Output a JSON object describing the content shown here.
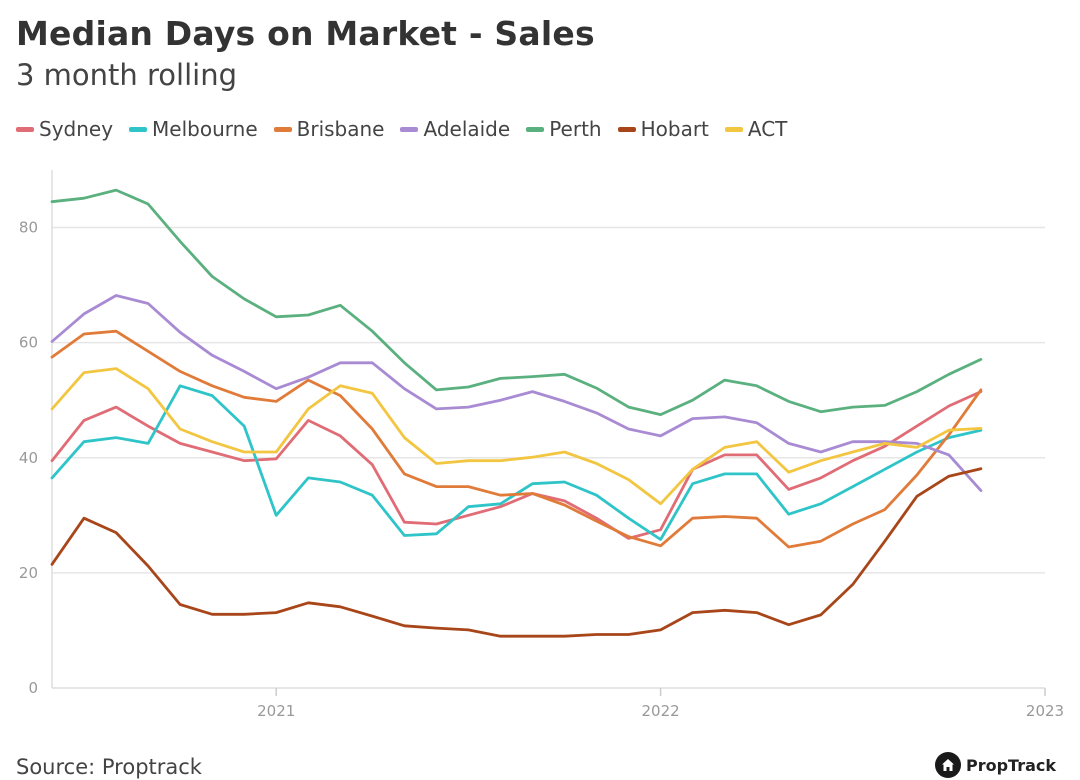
{
  "header": {
    "title": "Median Days on Market - Sales",
    "subtitle": "3 month rolling"
  },
  "footer": {
    "source": "Source: Proptrack",
    "brand": "PropTrack",
    "brand_icon": "house-icon"
  },
  "chart_data": {
    "type": "line",
    "title": "Median Days on Market - Sales",
    "subtitle": "3 month rolling",
    "xlabel": "",
    "ylabel": "",
    "x_unit": "month index (0 = Jun 2020)",
    "xlim": [
      0,
      31
    ],
    "ylim": [
      0,
      90
    ],
    "y_ticks": [
      0,
      20,
      40,
      60,
      80
    ],
    "x_ticks": [
      {
        "x": 7,
        "label": "2021"
      },
      {
        "x": 19,
        "label": "2022"
      },
      {
        "x": 31,
        "label": "2023"
      }
    ],
    "grid": true,
    "legend_position": "top",
    "x": [
      0,
      1,
      2,
      3,
      4,
      5,
      6,
      7,
      8,
      9,
      10,
      11,
      12,
      13,
      14,
      15,
      16,
      17,
      18,
      19,
      20,
      21,
      22,
      23,
      24,
      25,
      26,
      27,
      28,
      29,
      30
    ],
    "series": [
      {
        "name": "Sydney",
        "color": "#e06c75",
        "values": [
          39.5,
          46.5,
          48.8,
          45.5,
          42.5,
          41,
          39.5,
          39.8,
          46.5,
          43.8,
          38.8,
          28.8,
          28.5,
          30,
          31.5,
          33.8,
          32.5,
          29.5,
          26,
          27.5,
          38,
          40.5,
          40.5,
          34.5,
          36.5,
          39.5,
          42,
          45.5,
          49,
          51.5,
          null
        ]
      },
      {
        "name": "Melbourne",
        "color": "#2ec4c8",
        "values": [
          36.5,
          42.8,
          43.5,
          42.5,
          52.5,
          50.8,
          45.5,
          30,
          36.5,
          35.8,
          33.5,
          26.5,
          26.8,
          31.5,
          32,
          35.5,
          35.8,
          33.5,
          29.5,
          25.8,
          35.5,
          37.2,
          37.2,
          30.2,
          32,
          35,
          38,
          41,
          43.5,
          44.8,
          null
        ]
      },
      {
        "name": "Brisbane",
        "color": "#e07b39",
        "values": [
          57.5,
          61.5,
          62,
          58.5,
          55,
          52.5,
          50.5,
          49.8,
          53.5,
          50.8,
          45,
          37.2,
          35,
          35,
          33.5,
          33.8,
          31.8,
          29,
          26.3,
          24.7,
          29.5,
          29.8,
          29.5,
          24.5,
          25.5,
          28.5,
          31,
          37,
          44,
          51.8,
          null
        ]
      },
      {
        "name": "Adelaide",
        "color": "#a98bd3",
        "values": [
          60.2,
          65,
          68.2,
          66.8,
          61.8,
          57.8,
          55,
          52,
          54,
          56.5,
          56.5,
          52,
          48.5,
          48.8,
          50,
          51.5,
          49.8,
          47.8,
          45,
          43.8,
          46.8,
          47.1,
          46.1,
          42.5,
          41,
          42.8,
          42.8,
          42.5,
          40.5,
          34.3,
          null
        ]
      },
      {
        "name": "Perth",
        "color": "#5bb07f",
        "values": [
          84.5,
          85.1,
          86.5,
          84.1,
          77.6,
          71.5,
          67.6,
          64.5,
          64.8,
          66.5,
          62,
          56.5,
          51.8,
          52.3,
          53.8,
          54.1,
          54.5,
          52.1,
          48.8,
          47.5,
          50,
          53.5,
          52.5,
          49.8,
          48,
          48.8,
          49.1,
          51.5,
          54.5,
          57.1,
          null
        ]
      },
      {
        "name": "Hobart",
        "color": "#a8461a",
        "values": [
          21.5,
          29.5,
          27,
          21.2,
          14.5,
          12.8,
          12.8,
          13.1,
          14.8,
          14.1,
          12.5,
          10.8,
          10.4,
          10.1,
          9,
          9,
          9,
          9.3,
          9.3,
          10.1,
          13.1,
          13.5,
          13.1,
          11,
          12.7,
          18,
          25.5,
          33.3,
          36.8,
          38.1,
          null
        ]
      },
      {
        "name": "ACT",
        "color": "#f2c641",
        "values": [
          48.5,
          54.8,
          55.5,
          52,
          45,
          42.8,
          41,
          41,
          48.5,
          52.5,
          51.2,
          43.5,
          39,
          39.5,
          39.5,
          40.1,
          41,
          39,
          36.2,
          32,
          38,
          41.8,
          42.8,
          37.5,
          39.5,
          41,
          42.5,
          41.8,
          44.8,
          45.1,
          null
        ]
      }
    ]
  }
}
